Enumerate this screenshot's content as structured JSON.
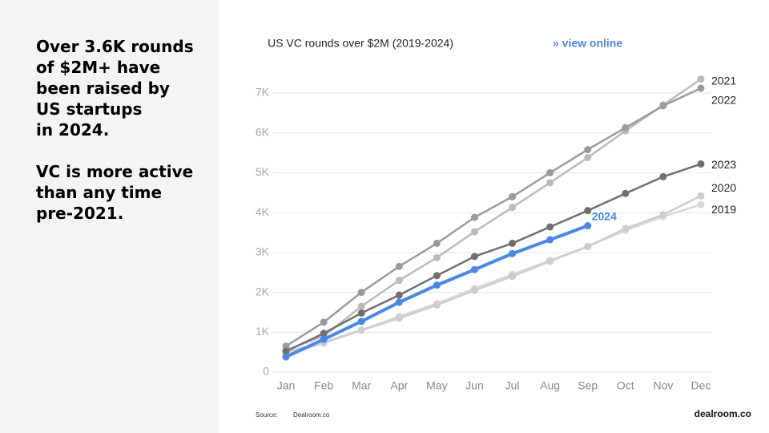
{
  "headline": [
    "Over 3.6K rounds",
    "of $2M+ have",
    "been raised by",
    "US startups",
    "in 2024."
  ],
  "subline": [
    "VC is more active",
    "than any time",
    "pre-2021."
  ],
  "source_label": "Source:",
  "source": "Dealroom.co",
  "brand": "dealroom.co",
  "chart_data": {
    "type": "line",
    "title": "US VC rounds over $2M (2019-2024)",
    "link": "» view online",
    "categories": [
      "Jan",
      "Feb",
      "Mar",
      "Apr",
      "May",
      "Jun",
      "Jul",
      "Aug",
      "Sep",
      "Oct",
      "Nov",
      "Dec"
    ],
    "series": [
      {
        "name": "2019",
        "color": "#d9d9d9",
        "values": [
          450,
          720,
          1050,
          1400,
          1720,
          2100,
          2450,
          2800,
          3150,
          3550,
          3900,
          4200
        ]
      },
      {
        "name": "2020",
        "color": "#cdcdcd",
        "values": [
          500,
          750,
          1050,
          1350,
          1680,
          2050,
          2400,
          2780,
          3150,
          3600,
          3950,
          4420
        ]
      },
      {
        "name": "2021",
        "color": "#bababa",
        "values": [
          550,
          900,
          1650,
          2300,
          2870,
          3520,
          4130,
          4750,
          5380,
          6050,
          6700,
          7350
        ]
      },
      {
        "name": "2022",
        "color": "#9b9b9b",
        "values": [
          650,
          1250,
          2000,
          2650,
          3230,
          3880,
          4400,
          5000,
          5580,
          6130,
          6680,
          7120
        ]
      },
      {
        "name": "2023",
        "color": "#6f6f6f",
        "values": [
          520,
          970,
          1480,
          1930,
          2420,
          2900,
          3230,
          3640,
          4050,
          4480,
          4900,
          5220
        ]
      },
      {
        "name": "2024",
        "color": "#4a86e8",
        "values": [
          380,
          820,
          1270,
          1750,
          2180,
          2570,
          2970,
          3320,
          3670,
          null,
          null,
          null
        ]
      }
    ],
    "ylim": [
      0,
      7000
    ],
    "yticks": [
      0,
      {
        "value": 1000,
        "label": "1K"
      },
      {
        "value": 2000,
        "label": "2K"
      },
      {
        "value": 3000,
        "label": "3K"
      },
      {
        "value": 4000,
        "label": "4K"
      },
      {
        "value": 5000,
        "label": "5K"
      },
      {
        "value": 6000,
        "label": "6K"
      },
      {
        "value": 7000,
        "label": "7K"
      }
    ],
    "grid": true
  }
}
